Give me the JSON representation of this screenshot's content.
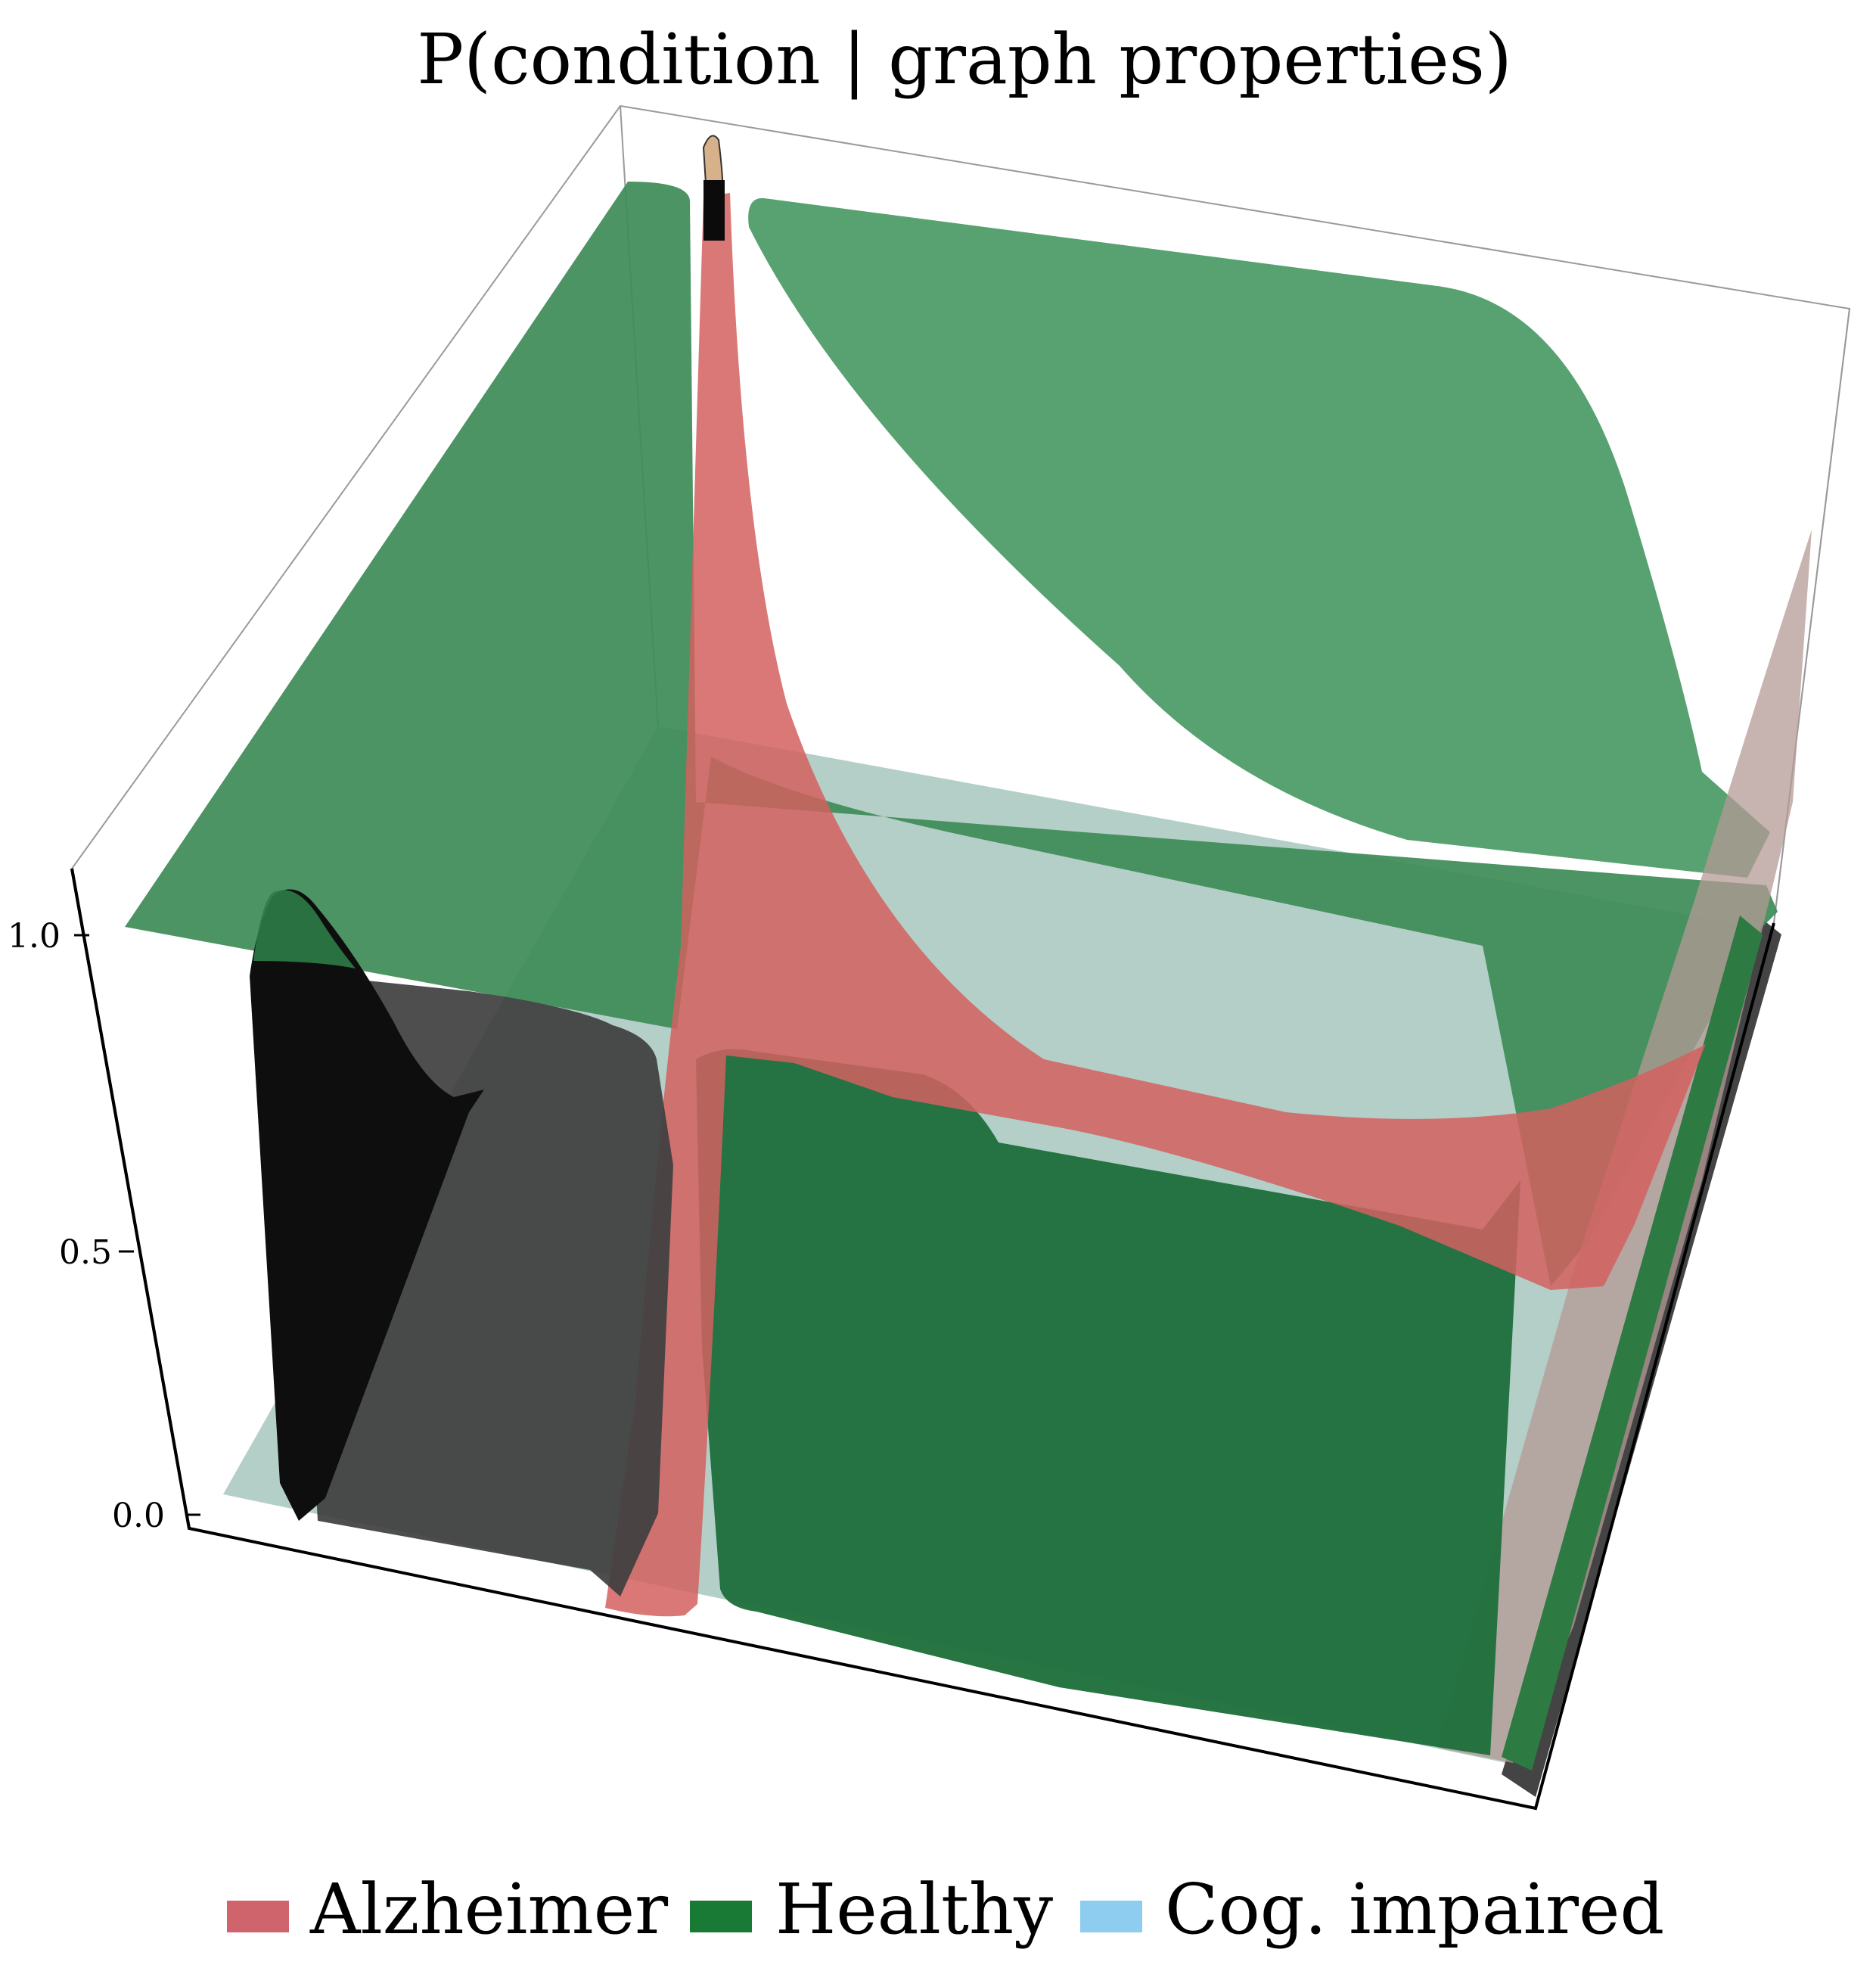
{
  "chart_data": {
    "type": "surface3d",
    "title": "P(condition | graph properties)",
    "xlabel": "",
    "ylabel": "",
    "zlabel": "",
    "zlim": [
      0.0,
      1.0
    ],
    "z_ticks": [
      {
        "value": 0.0,
        "label": "0.0"
      },
      {
        "value": 0.5,
        "label": "0.5"
      },
      {
        "value": 1.0,
        "label": "1.0"
      }
    ],
    "legend_position": "bottom",
    "series": [
      {
        "name": "Alzheimer",
        "color": "#d0646c"
      },
      {
        "name": "Healthy",
        "color": "#197a36"
      },
      {
        "name": "Cog. impaired",
        "color": "#8ecdf0"
      }
    ]
  }
}
